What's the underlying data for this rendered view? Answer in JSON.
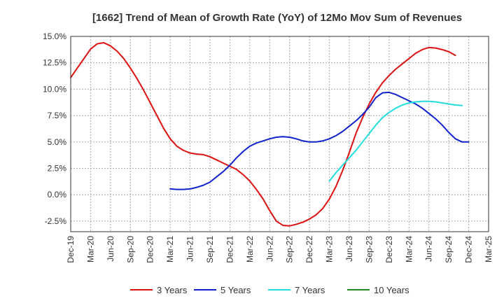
{
  "chart_data": {
    "type": "line",
    "title": "[1662]  Trend of Mean of Growth Rate (YoY) of 12Mo Mov Sum of Revenues",
    "xlabel": "",
    "ylabel": "",
    "ylim": [
      -3.5,
      15.0
    ],
    "yticks": [
      -2.5,
      0.0,
      2.5,
      5.0,
      7.5,
      10.0,
      12.5,
      15.0
    ],
    "ytick_labels": [
      "-2.5%",
      "0.0%",
      "2.5%",
      "5.0%",
      "7.5%",
      "10.0%",
      "12.5%",
      "15.0%"
    ],
    "xtick_labels": [
      "Dec-19",
      "Mar-20",
      "Jun-20",
      "Sep-20",
      "Dec-20",
      "Mar-21",
      "Jun-21",
      "Sep-21",
      "Dec-21",
      "Mar-22",
      "Jun-22",
      "Sep-22",
      "Dec-22",
      "Mar-23",
      "Jun-23",
      "Sep-23",
      "Dec-23",
      "Mar-24",
      "Jun-24",
      "Sep-24",
      "Dec-24",
      "Mar-25"
    ],
    "x_start_label": "Dec-19",
    "grid": true,
    "legend_position": "bottom",
    "series": [
      {
        "name": "3 Years",
        "color": "#dd1111",
        "start_month_index": 0,
        "values": [
          11.1,
          12.0,
          12.9,
          13.8,
          14.3,
          14.4,
          14.1,
          13.6,
          12.9,
          12.0,
          11.0,
          9.9,
          8.7,
          7.5,
          6.3,
          5.3,
          4.6,
          4.2,
          3.95,
          3.85,
          3.8,
          3.6,
          3.3,
          3.0,
          2.7,
          2.4,
          1.9,
          1.3,
          0.5,
          -0.4,
          -1.5,
          -2.5,
          -2.9,
          -2.95,
          -2.8,
          -2.6,
          -2.3,
          -1.9,
          -1.3,
          -0.4,
          0.8,
          2.3,
          4.0,
          5.8,
          7.3,
          8.6,
          9.7,
          10.6,
          11.3,
          11.9,
          12.4,
          12.9,
          13.4,
          13.75,
          13.95,
          13.9,
          13.75,
          13.55,
          13.2
        ]
      },
      {
        "name": "5 Years",
        "color": "#1122cc",
        "start_month_index": 15,
        "values": [
          0.55,
          0.5,
          0.5,
          0.55,
          0.7,
          0.9,
          1.2,
          1.7,
          2.2,
          2.8,
          3.5,
          4.1,
          4.6,
          4.9,
          5.1,
          5.3,
          5.45,
          5.5,
          5.45,
          5.3,
          5.1,
          5.0,
          5.0,
          5.1,
          5.3,
          5.6,
          6.0,
          6.5,
          7.0,
          7.6,
          8.3,
          9.2,
          9.65,
          9.7,
          9.5,
          9.2,
          8.9,
          8.6,
          8.2,
          7.7,
          7.2,
          6.6,
          5.9,
          5.3,
          5.0,
          5.0
        ]
      },
      {
        "name": "7 Years",
        "color": "#22dddd",
        "start_month_index": 39,
        "values": [
          1.3,
          2.1,
          2.8,
          3.5,
          4.2,
          5.0,
          5.8,
          6.6,
          7.3,
          7.8,
          8.2,
          8.5,
          8.7,
          8.8,
          8.85,
          8.85,
          8.8,
          8.7,
          8.6,
          8.5,
          8.45
        ]
      },
      {
        "name": "10 Years",
        "color": "#228822",
        "start_month_index": 0,
        "values": []
      }
    ]
  }
}
